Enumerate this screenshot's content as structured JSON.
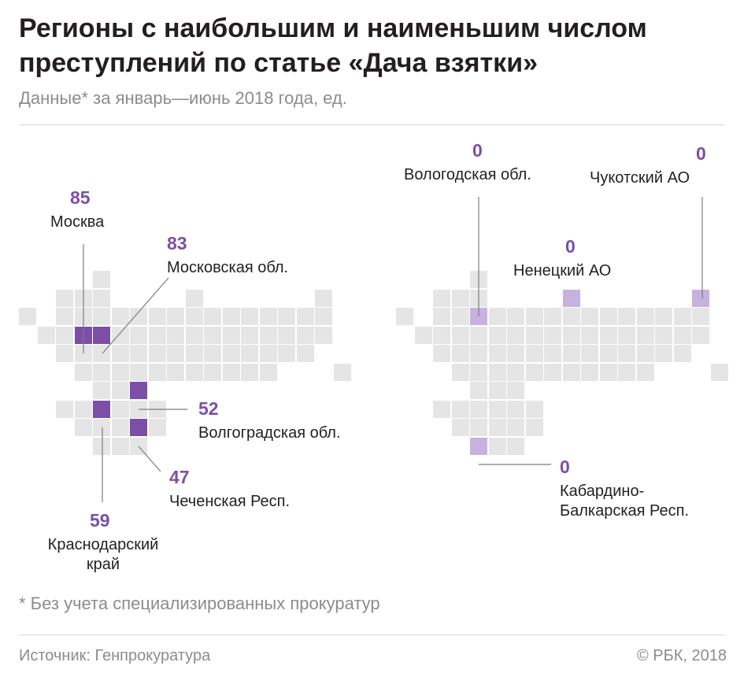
{
  "header": {
    "title": "Регионы с наибольшим и наименьшим числом преступлений по статье «Дача взятки»",
    "subtitle": "Данные* за январь—июнь 2018 года, ед."
  },
  "map_left": {
    "regions": [
      {
        "name": "Москва",
        "value": "85"
      },
      {
        "name": "Московская обл.",
        "value": "83"
      },
      {
        "name": "Волгоградская обл.",
        "value": "52"
      },
      {
        "name": "Чеченская Респ.",
        "value": "47"
      },
      {
        "name": "Краснодарский край",
        "name_line1": "Краснодарский",
        "name_line2": "край",
        "value": "59"
      }
    ]
  },
  "map_right": {
    "regions": [
      {
        "name": "Вологодская обл.",
        "value": "0"
      },
      {
        "name": "Чукотский АО",
        "value": "0"
      },
      {
        "name": "Ненецкий АО",
        "value": "0"
      },
      {
        "name": "Кабардино-Балкарская Респ.",
        "name_line1": "Кабардино-",
        "name_line2": "Балкарская Респ.",
        "value": "0"
      }
    ]
  },
  "colors": {
    "highlight_high": "#7b4fa6",
    "highlight_low": "#c7b1de",
    "tile": "#e5e5e5"
  },
  "footer": {
    "footnote": "* Без учета специализированных прокуратур",
    "source": "Источник: Генпрокуратура",
    "copyright": "© РБК, 2018"
  }
}
